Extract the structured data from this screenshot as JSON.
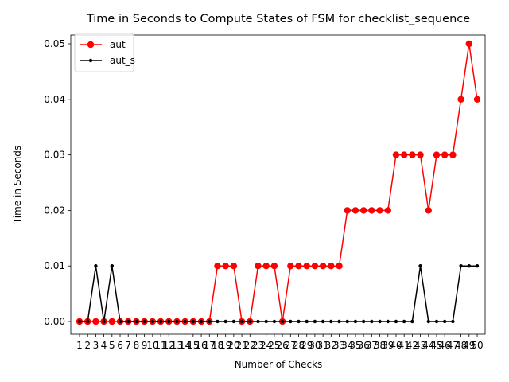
{
  "chart_data": {
    "type": "line",
    "title": "Time in Seconds to Compute States of FSM for checklist_sequence",
    "xlabel": "Number of Checks",
    "ylabel": "Time in Seconds",
    "x": [
      1,
      2,
      3,
      4,
      5,
      6,
      7,
      8,
      9,
      10,
      11,
      12,
      13,
      14,
      15,
      16,
      17,
      18,
      19,
      20,
      21,
      22,
      23,
      24,
      25,
      26,
      27,
      28,
      29,
      30,
      31,
      32,
      33,
      34,
      35,
      36,
      37,
      38,
      39,
      40,
      41,
      42,
      43,
      44,
      45,
      46,
      47,
      48,
      49,
      50
    ],
    "xlim": [
      1,
      50
    ],
    "ylim": [
      0,
      0.05
    ],
    "yticks": [
      "0.00",
      "0.01",
      "0.02",
      "0.03",
      "0.04",
      "0.05"
    ],
    "grid": false,
    "legend_position": "top-left",
    "series": [
      {
        "name": "aut",
        "color": "#ff0000",
        "marker": "large-circle",
        "values": [
          0,
          0,
          0,
          0,
          0,
          0,
          0,
          0,
          0,
          0,
          0,
          0,
          0,
          0,
          0,
          0,
          0,
          0.01,
          0.01,
          0.01,
          0,
          0,
          0.01,
          0.01,
          0.01,
          0,
          0.01,
          0.01,
          0.01,
          0.01,
          0.01,
          0.01,
          0.01,
          0.02,
          0.02,
          0.02,
          0.02,
          0.02,
          0.02,
          0.03,
          0.03,
          0.03,
          0.03,
          0.02,
          0.03,
          0.03,
          0.03,
          0.04,
          0.05,
          0.04
        ]
      },
      {
        "name": "aut_s",
        "color": "#000000",
        "marker": "small-dot",
        "values": [
          0,
          0,
          0.01,
          0,
          0.01,
          0,
          0,
          0,
          0,
          0,
          0,
          0,
          0,
          0,
          0,
          0,
          0,
          0,
          0,
          0,
          0,
          0,
          0,
          0,
          0,
          0,
          0,
          0,
          0,
          0,
          0,
          0,
          0,
          0,
          0,
          0,
          0,
          0,
          0,
          0,
          0,
          0,
          0.01,
          0,
          0,
          0,
          0,
          0.01,
          0.01,
          0.01
        ]
      }
    ]
  }
}
